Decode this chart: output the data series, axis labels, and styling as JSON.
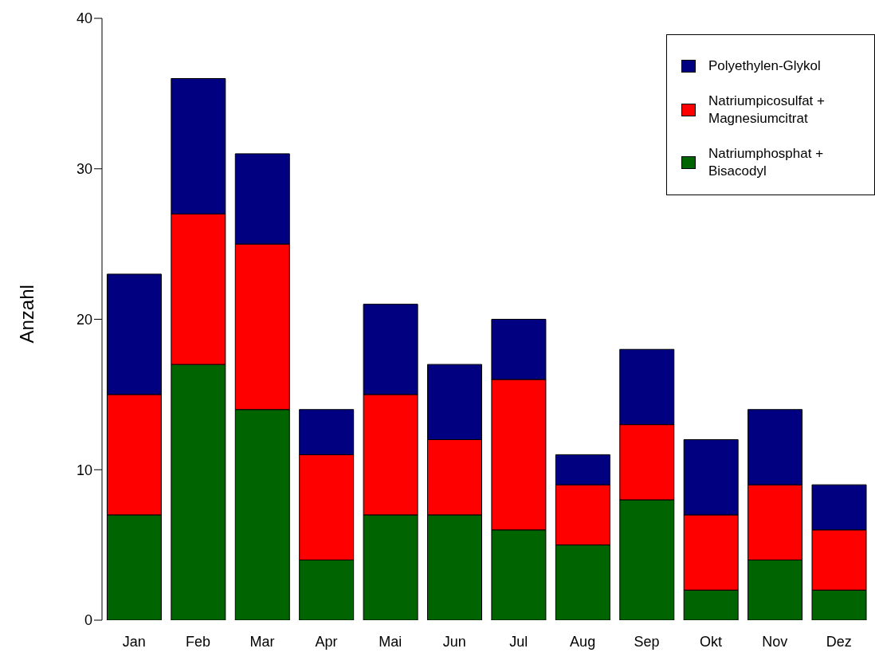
{
  "chart_data": {
    "type": "bar",
    "ylabel": "Anzahl",
    "categories": [
      "Jan",
      "Feb",
      "Mar",
      "Apr",
      "Mai",
      "Jun",
      "Jul",
      "Aug",
      "Sep",
      "Okt",
      "Nov",
      "Dez"
    ],
    "series": [
      {
        "name": "Natriumphosphat + Bisacodyl",
        "color": "#006400",
        "values": [
          7,
          17,
          14,
          4,
          7,
          7,
          6,
          5,
          8,
          2,
          4,
          2
        ]
      },
      {
        "name": "Natriumpicosulfat + Magnesiumcitrat",
        "color": "#ff0000",
        "values": [
          8,
          10,
          11,
          7,
          8,
          5,
          10,
          4,
          5,
          5,
          5,
          4
        ]
      },
      {
        "name": "Polyethylen-Glykol",
        "color": "#000080",
        "values": [
          8,
          9,
          6,
          3,
          6,
          5,
          4,
          2,
          5,
          5,
          5,
          3
        ]
      }
    ],
    "stacked": true,
    "ylim": [
      0,
      40
    ],
    "yticks": [
      0,
      10,
      20,
      30,
      40
    ],
    "grid": false,
    "legend": "top right"
  }
}
